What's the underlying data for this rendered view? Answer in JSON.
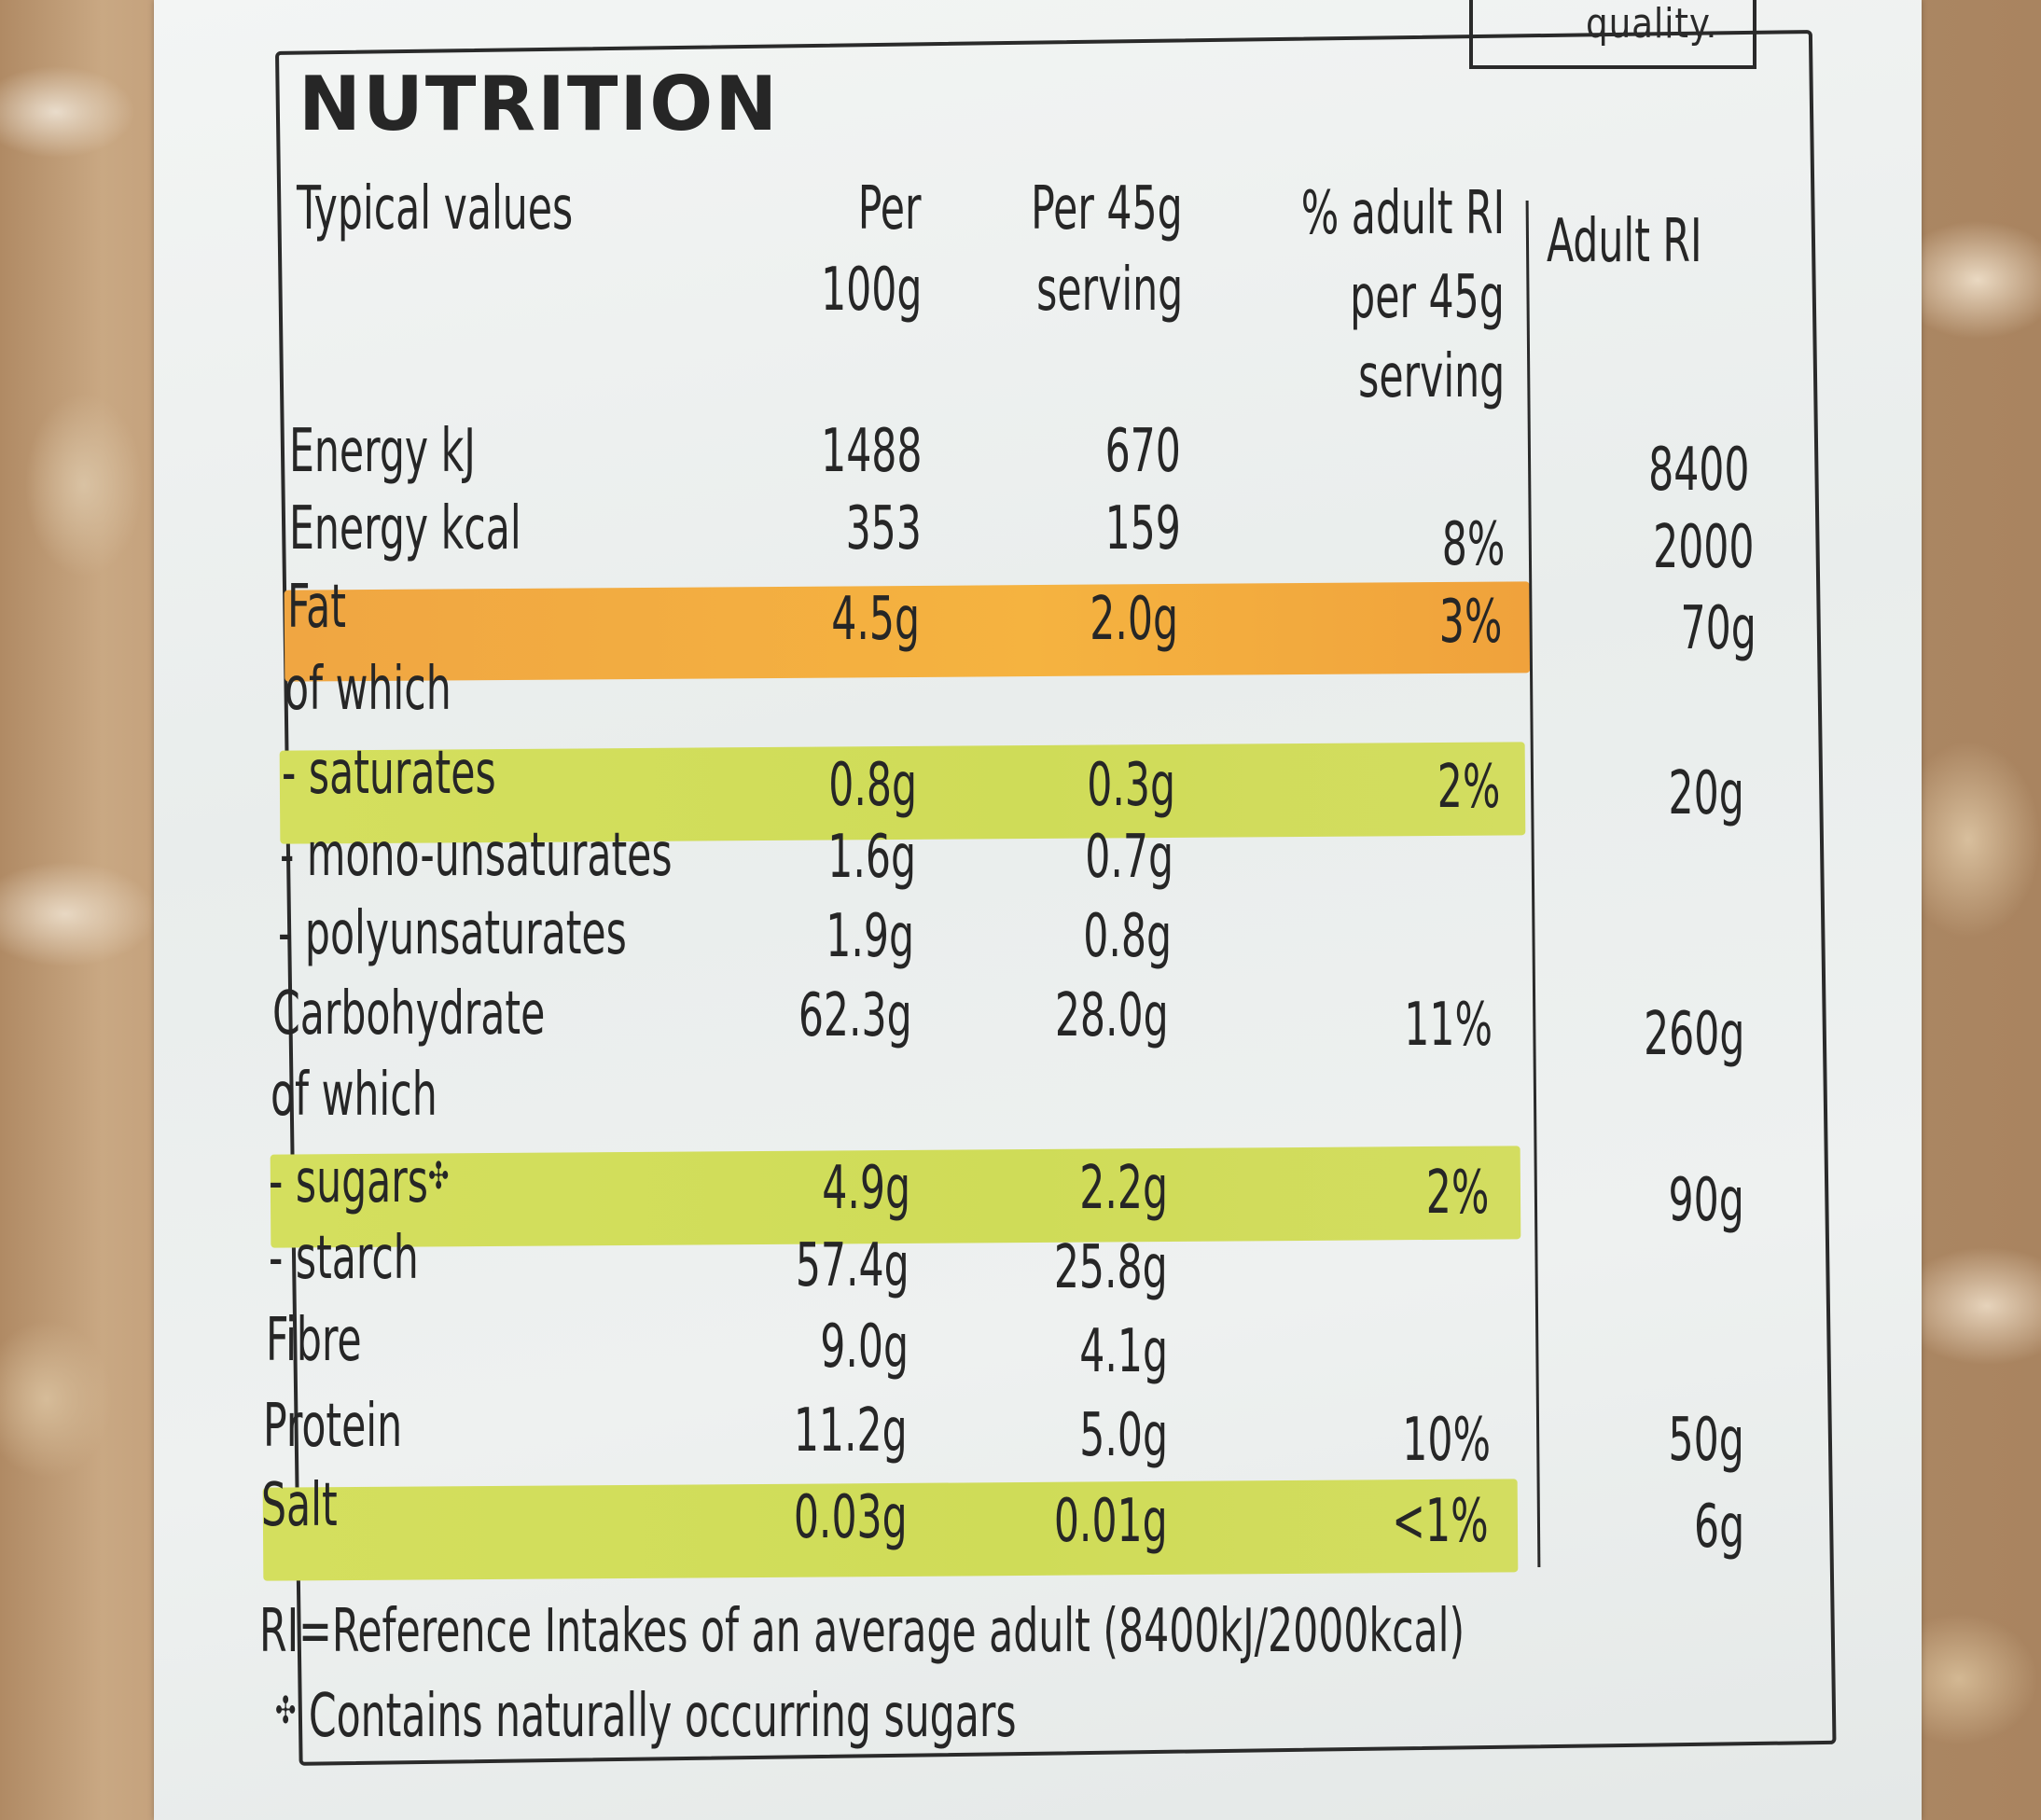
{
  "label": {
    "top_fragment": "quality.",
    "title": "NUTRITION",
    "headers": {
      "typical": "Typical values",
      "per100_line1": "Per",
      "per100_line2": "100g",
      "per45_line1": "Per 45g",
      "per45_line2": "serving",
      "ri_pct_line1": "% adult RI",
      "ri_pct_line2": "per 45g",
      "ri_pct_line3": "serving",
      "adult_ri": "Adult RI"
    },
    "rows": [
      {
        "name": "Energy kJ",
        "per100": "1488",
        "per45": "670",
        "ri_pct": "",
        "adult_ri": "8400"
      },
      {
        "name": "Energy kcal",
        "per100": "353",
        "per45": "159",
        "ri_pct": "8%",
        "adult_ri": "2000"
      },
      {
        "name": "Fat",
        "per100": "4.5g",
        "per45": "2.0g",
        "ri_pct": "3%",
        "adult_ri": "70g",
        "highlight": "#f3ab40"
      },
      {
        "name": "of which",
        "per100": "",
        "per45": "",
        "ri_pct": "",
        "adult_ri": ""
      },
      {
        "name": "- saturates",
        "per100": "0.8g",
        "per45": "0.3g",
        "ri_pct": "2%",
        "adult_ri": "20g",
        "highlight": "#d2dd5c"
      },
      {
        "name": "- mono-unsaturates",
        "per100": "1.6g",
        "per45": "0.7g",
        "ri_pct": "",
        "adult_ri": ""
      },
      {
        "name": "- polyunsaturates",
        "per100": "1.9g",
        "per45": "0.8g",
        "ri_pct": "",
        "adult_ri": ""
      },
      {
        "name": "Carbohydrate",
        "per100": "62.3g",
        "per45": "28.0g",
        "ri_pct": "11%",
        "adult_ri": "260g"
      },
      {
        "name": "of which",
        "per100": "",
        "per45": "",
        "ri_pct": "",
        "adult_ri": ""
      },
      {
        "name": "- sugars",
        "per100": "4.9g",
        "per45": "2.2g",
        "ri_pct": "2%",
        "adult_ri": "90g",
        "highlight": "#d2dd5c"
      },
      {
        "name": "- starch",
        "per100": "57.4g",
        "per45": "25.8g",
        "ri_pct": "",
        "adult_ri": ""
      },
      {
        "name": "Fibre",
        "per100": "9.0g",
        "per45": "4.1g",
        "ri_pct": "",
        "adult_ri": ""
      },
      {
        "name": "Protein",
        "per100": "11.2g",
        "per45": "5.0g",
        "ri_pct": "10%",
        "adult_ri": "50g"
      },
      {
        "name": "Salt",
        "per100": "0.03g",
        "per45": "0.01g",
        "ri_pct": "<1%",
        "adult_ri": "6g",
        "highlight": "#d2dd5c"
      }
    ],
    "sugar_symbol": "✣",
    "footnote_ri": "RI=Reference Intakes of an average adult (8400kJ/2000kcal)",
    "footnote_sugars": "Contains naturally occurring sugars"
  }
}
